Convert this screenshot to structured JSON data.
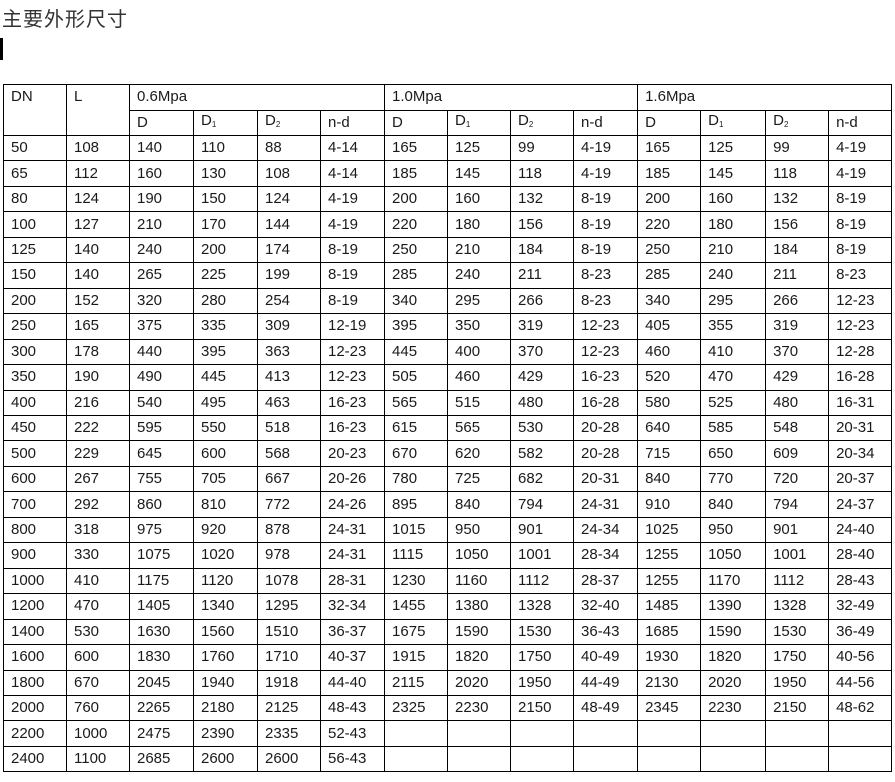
{
  "title": "主要外形尺寸",
  "table": {
    "header": {
      "dn": "DN",
      "l": "L",
      "groups": [
        "0.6Mpa",
        "1.0Mpa",
        "1.6Mpa"
      ],
      "sub_columns": [
        {
          "base": "D",
          "sub": ""
        },
        {
          "base": "D",
          "sub": "1"
        },
        {
          "base": "D",
          "sub": "2"
        },
        {
          "base": "n-d",
          "sub": ""
        }
      ]
    },
    "rows": [
      [
        "50",
        "108",
        "140",
        "110",
        "88",
        "4-14",
        "165",
        "125",
        "99",
        "4-19",
        "165",
        "125",
        "99",
        "4-19"
      ],
      [
        "65",
        "112",
        "160",
        "130",
        "108",
        "4-14",
        "185",
        "145",
        "118",
        "4-19",
        "185",
        "145",
        "118",
        "4-19"
      ],
      [
        "80",
        "124",
        "190",
        "150",
        "124",
        "4-19",
        "200",
        "160",
        "132",
        "8-19",
        "200",
        "160",
        "132",
        "8-19"
      ],
      [
        "100",
        "127",
        "210",
        "170",
        "144",
        "4-19",
        "220",
        "180",
        "156",
        "8-19",
        "220",
        "180",
        "156",
        "8-19"
      ],
      [
        "125",
        "140",
        "240",
        "200",
        "174",
        "8-19",
        "250",
        "210",
        "184",
        "8-19",
        "250",
        "210",
        "184",
        "8-19"
      ],
      [
        "150",
        "140",
        "265",
        "225",
        "199",
        "8-19",
        "285",
        "240",
        "211",
        "8-23",
        "285",
        "240",
        "211",
        "8-23"
      ],
      [
        "200",
        "152",
        "320",
        "280",
        "254",
        "8-19",
        "340",
        "295",
        "266",
        "8-23",
        "340",
        "295",
        "266",
        "12-23"
      ],
      [
        "250",
        "165",
        "375",
        "335",
        "309",
        "12-19",
        "395",
        "350",
        "319",
        "12-23",
        "405",
        "355",
        "319",
        "12-23"
      ],
      [
        "300",
        "178",
        "440",
        "395",
        "363",
        "12-23",
        "445",
        "400",
        "370",
        "12-23",
        "460",
        "410",
        "370",
        "12-28"
      ],
      [
        "350",
        "190",
        "490",
        "445",
        "413",
        "12-23",
        "505",
        "460",
        "429",
        "16-23",
        "520",
        "470",
        "429",
        "16-28"
      ],
      [
        "400",
        "216",
        "540",
        "495",
        "463",
        "16-23",
        "565",
        "515",
        "480",
        "16-28",
        "580",
        "525",
        "480",
        "16-31"
      ],
      [
        "450",
        "222",
        "595",
        "550",
        "518",
        "16-23",
        "615",
        "565",
        "530",
        "20-28",
        "640",
        "585",
        "548",
        "20-31"
      ],
      [
        "500",
        "229",
        "645",
        "600",
        "568",
        "20-23",
        "670",
        "620",
        "582",
        "20-28",
        "715",
        "650",
        "609",
        "20-34"
      ],
      [
        "600",
        "267",
        "755",
        "705",
        "667",
        "20-26",
        "780",
        "725",
        "682",
        "20-31",
        "840",
        "770",
        "720",
        "20-37"
      ],
      [
        "700",
        "292",
        "860",
        "810",
        "772",
        "24-26",
        "895",
        "840",
        "794",
        "24-31",
        "910",
        "840",
        "794",
        "24-37"
      ],
      [
        "800",
        "318",
        "975",
        "920",
        "878",
        "24-31",
        "1015",
        "950",
        "901",
        "24-34",
        "1025",
        "950",
        "901",
        "24-40"
      ],
      [
        "900",
        "330",
        "1075",
        "1020",
        "978",
        "24-31",
        "1115",
        "1050",
        "1001",
        "28-34",
        "1255",
        "1050",
        "1001",
        "28-40"
      ],
      [
        "1000",
        "410",
        "1175",
        "1120",
        "1078",
        "28-31",
        "1230",
        "1160",
        "1112",
        "28-37",
        "1255",
        "1170",
        "1112",
        "28-43"
      ],
      [
        "1200",
        "470",
        "1405",
        "1340",
        "1295",
        "32-34",
        "1455",
        "1380",
        "1328",
        "32-40",
        "1485",
        "1390",
        "1328",
        "32-49"
      ],
      [
        "1400",
        "530",
        "1630",
        "1560",
        "1510",
        "36-37",
        "1675",
        "1590",
        "1530",
        "36-43",
        "1685",
        "1590",
        "1530",
        "36-49"
      ],
      [
        "1600",
        "600",
        "1830",
        "1760",
        "1710",
        "40-37",
        "1915",
        "1820",
        "1750",
        "40-49",
        "1930",
        "1820",
        "1750",
        "40-56"
      ],
      [
        "1800",
        "670",
        "2045",
        "1940",
        "1918",
        "44-40",
        "2115",
        "2020",
        "1950",
        "44-49",
        "2130",
        "2020",
        "1950",
        "44-56"
      ],
      [
        "2000",
        "760",
        "2265",
        "2180",
        "2125",
        "48-43",
        "2325",
        "2230",
        "2150",
        "48-49",
        "2345",
        "2230",
        "2150",
        "48-62"
      ],
      [
        "2200",
        "1000",
        "2475",
        "2390",
        "2335",
        "52-43",
        "",
        "",
        "",
        "",
        "",
        "",
        "",
        ""
      ],
      [
        "2400",
        "1100",
        "2685",
        "2600",
        "2600",
        "56-43",
        "",
        "",
        "",
        "",
        "",
        "",
        "",
        ""
      ]
    ]
  }
}
